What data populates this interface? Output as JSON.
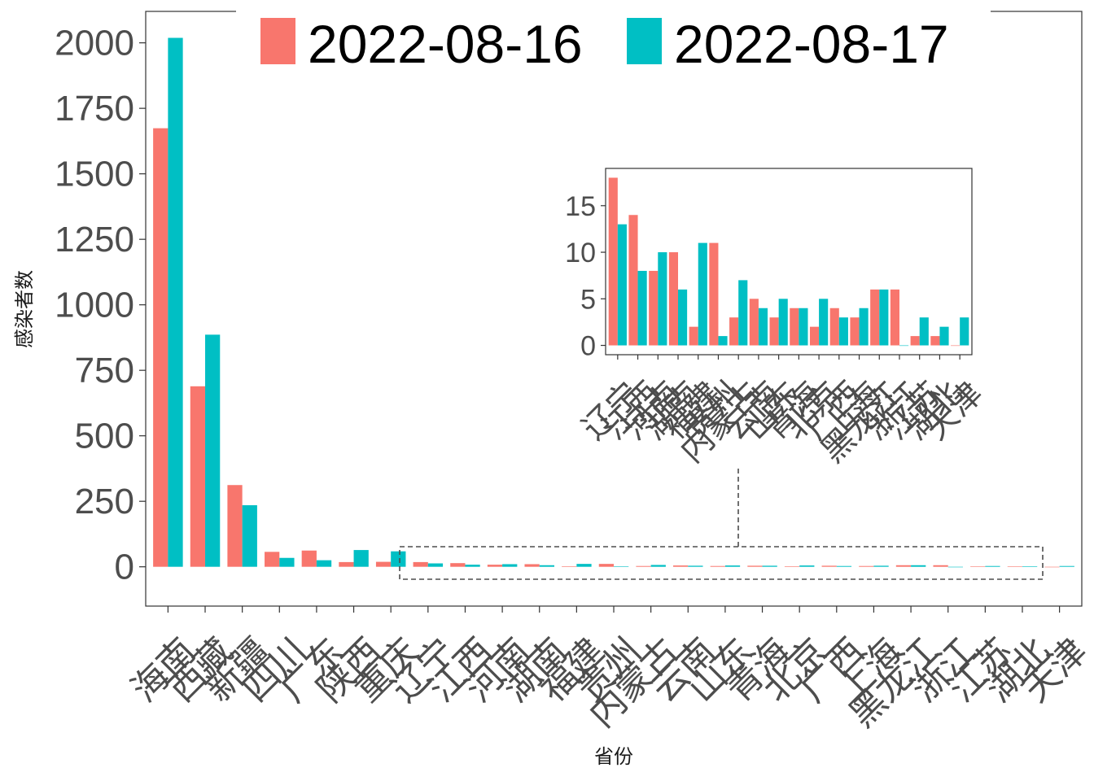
{
  "chart_data": {
    "type": "bar",
    "xlabel": "省份",
    "ylabel": "感染者数",
    "categories": [
      "海南",
      "西藏",
      "新疆",
      "四川",
      "广东",
      "陕西",
      "重庆",
      "辽宁",
      "江西",
      "河南",
      "湖南",
      "福建",
      "贵州",
      "内蒙古",
      "云南",
      "山东",
      "青海",
      "北京",
      "广西",
      "上海",
      "黑龙江",
      "浙江",
      "江苏",
      "湖北",
      "天津"
    ],
    "series": [
      {
        "name": "2022-08-16",
        "color": "#f8766d",
        "values": [
          1674,
          689,
          312,
          57,
          62,
          18,
          19,
          18,
          14,
          8,
          10,
          2,
          11,
          3,
          5,
          3,
          4,
          2,
          4,
          3,
          6,
          6,
          1,
          1,
          0
        ]
      },
      {
        "name": "2022-08-17",
        "color": "#00bfc4",
        "values": [
          2019,
          886,
          235,
          34,
          25,
          64,
          59,
          13,
          8,
          10,
          6,
          11,
          1,
          7,
          4,
          5,
          4,
          5,
          3,
          4,
          6,
          0,
          3,
          2,
          3
        ]
      }
    ],
    "ylim": [
      -150,
      2120
    ],
    "yticks": [
      0,
      250,
      500,
      750,
      1000,
      1250,
      1500,
      1750,
      2000
    ],
    "grid": false,
    "legend_position": "top",
    "inset": {
      "type": "bar",
      "start_index": 7,
      "categories": [
        "辽宁",
        "江西",
        "河南",
        "湖南",
        "福建",
        "贵州",
        "内蒙古",
        "云南",
        "山东",
        "青海",
        "北京",
        "广西",
        "上海",
        "黑龙江",
        "浙江",
        "江苏",
        "湖北",
        "天津"
      ],
      "yticks": [
        0,
        5,
        10,
        15
      ],
      "ylim": [
        -1,
        19
      ]
    }
  }
}
